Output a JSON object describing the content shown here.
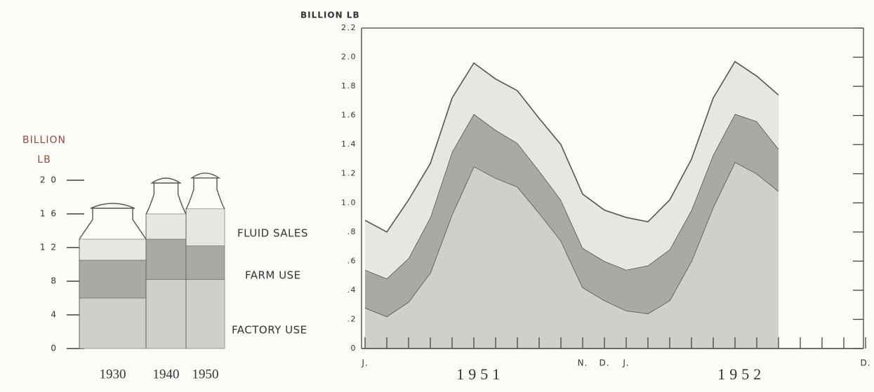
{
  "chart_data": [
    {
      "type": "stacked-bar",
      "y_label": "BILLION LB",
      "categories": [
        "1930",
        "1940",
        "1950"
      ],
      "series": [
        {
          "name": "FACTORY USE",
          "color": "#cfcfcb",
          "values": [
            6,
            8.2,
            8.2
          ]
        },
        {
          "name": "FARM USE",
          "color": "#a9a9a5",
          "values": [
            4.5,
            4.8,
            4
          ]
        },
        {
          "name": "FLUID SALES",
          "color": "#e6e6e2",
          "values": [
            2.5,
            3,
            4.4
          ]
        }
      ],
      "ylim": [
        0,
        20
      ],
      "yticks": [
        0,
        4,
        8,
        {
          "value": 12,
          "label": "1 2"
        },
        {
          "value": 16,
          "label": "1 6"
        },
        {
          "value": 20,
          "label": "2 0"
        }
      ]
    },
    {
      "type": "stacked-area",
      "y_label": "BILLION LB",
      "categories": [
        "J.",
        null,
        null,
        null,
        null,
        null,
        null,
        null,
        null,
        null,
        "N.",
        "D.",
        "J.",
        null,
        null,
        null,
        null,
        null,
        null,
        null,
        null,
        null,
        null,
        "D."
      ],
      "year_labels": [
        "1951",
        "1952"
      ],
      "series": [
        {
          "color": "#cfcfcb",
          "values": [
            0.28,
            0.22,
            0.32,
            0.52,
            0.92,
            1.25,
            1.17,
            1.11,
            0.93,
            0.74,
            0.42,
            0.33,
            0.26,
            0.24,
            0.33,
            0.6,
            0.97,
            1.28,
            1.2,
            1.08,
            null,
            null,
            null,
            null
          ]
        },
        {
          "color": "#a9a9a5",
          "values": [
            0.26,
            0.26,
            0.3,
            0.38,
            0.43,
            0.36,
            0.33,
            0.3,
            0.29,
            0.28,
            0.27,
            0.27,
            0.28,
            0.33,
            0.35,
            0.35,
            0.36,
            0.33,
            0.36,
            0.29,
            null,
            null,
            null,
            null
          ]
        },
        {
          "color": "#e6e6e2",
          "values": [
            0.34,
            0.32,
            0.4,
            0.37,
            0.37,
            0.35,
            0.35,
            0.36,
            0.36,
            0.38,
            0.37,
            0.35,
            0.36,
            0.3,
            0.34,
            0.35,
            0.39,
            0.36,
            0.31,
            0.37,
            null,
            null,
            null,
            null
          ]
        }
      ],
      "ylim": [
        0,
        2.2
      ],
      "yticks": [
        0,
        {
          "value": 0.2,
          "label": ".2"
        },
        {
          "value": 0.4,
          "label": ".4"
        },
        {
          "value": 0.6,
          "label": ".6"
        },
        {
          "value": 0.8,
          "label": ".8"
        },
        {
          "value": 1,
          "label": "1.0"
        },
        1.2,
        1.4,
        1.6,
        1.8,
        {
          "value": 2,
          "label": "2.0"
        },
        2.2
      ]
    }
  ]
}
